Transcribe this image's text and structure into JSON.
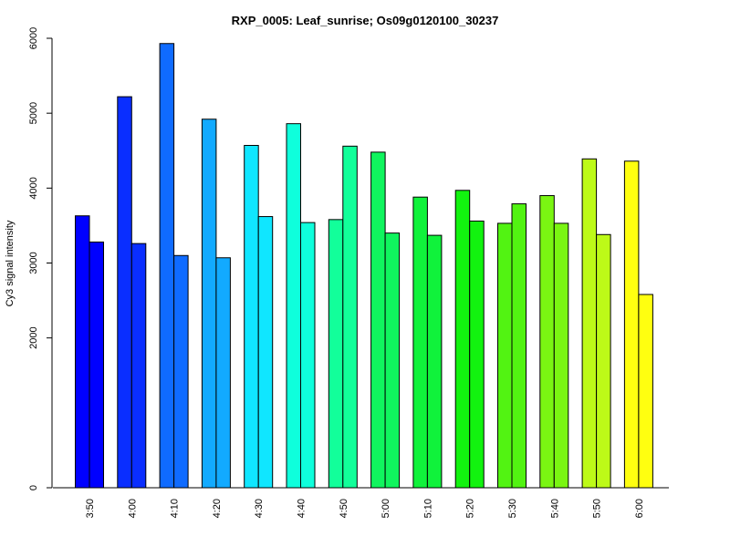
{
  "chart_data": {
    "type": "bar",
    "title": "RXP_0005: Leaf_sunrise; Os09g0120100_30237",
    "xlabel": "",
    "ylabel": "Cy3 signal intensity",
    "categories": [
      "3:50",
      "4:00",
      "4:10",
      "4:20",
      "4:30",
      "4:40",
      "4:50",
      "5:00",
      "5:10",
      "5:20",
      "5:30",
      "5:40",
      "5:50",
      "6:00"
    ],
    "series": [
      {
        "values": [
          3630,
          5220,
          5930,
          4920,
          4570,
          4860,
          3580,
          4480,
          3880,
          3970,
          3530,
          3900,
          4390,
          4360
        ]
      },
      {
        "values": [
          3280,
          3260,
          3100,
          3070,
          3620,
          3540,
          4560,
          3400,
          3370,
          3560,
          3790,
          3530,
          3380,
          2580
        ]
      }
    ],
    "bar_colors": [
      "#0000FF",
      "#0A2EFF",
      "#0F6BFF",
      "#12AAFF",
      "#10E6FF",
      "#0FFFDC",
      "#12FF9A",
      "#10F55E",
      "#10F23B",
      "#12F30F",
      "#52F312",
      "#7AF512",
      "#BDFA18",
      "#FFFF10"
    ],
    "yticks": [
      0,
      2000,
      3000,
      4000,
      5000,
      6000
    ],
    "ylim": [
      0,
      6000
    ],
    "grid": false,
    "legend": "none"
  }
}
